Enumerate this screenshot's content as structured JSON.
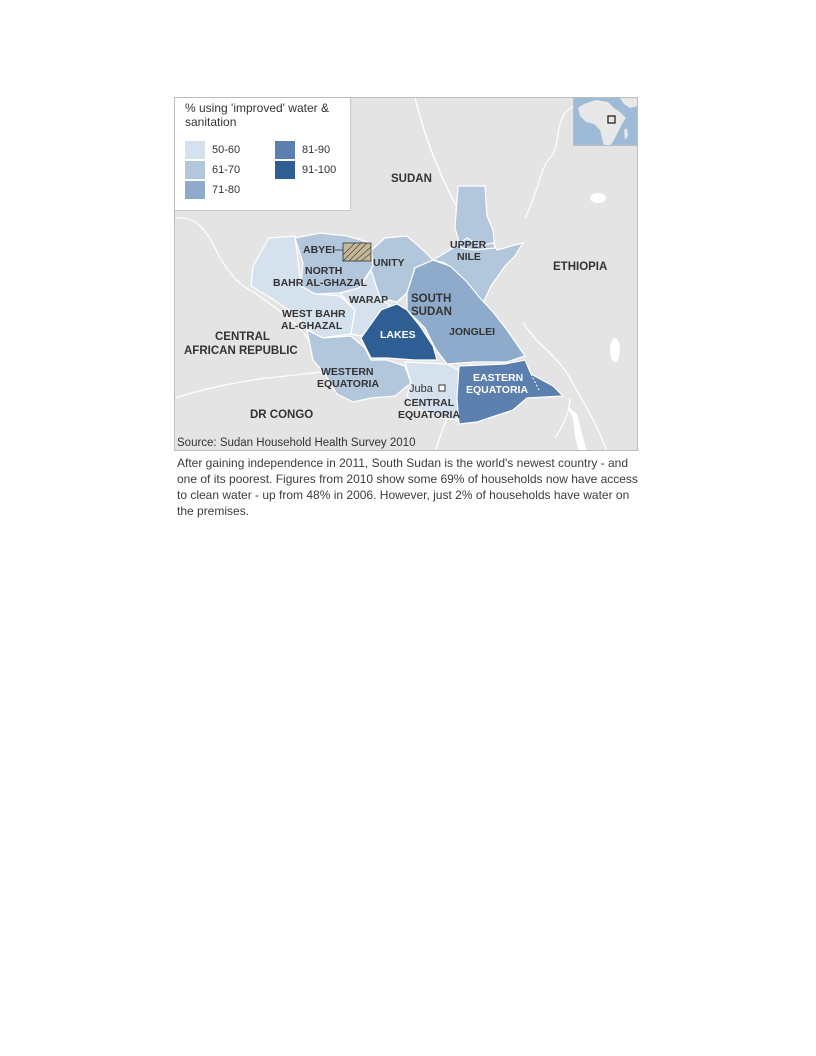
{
  "legend": {
    "title": "% using 'improved' water & sanitation",
    "items": [
      {
        "label": "50-60",
        "color": "#d6e1ee"
      },
      {
        "label": "61-70",
        "color": "#b2c6dc"
      },
      {
        "label": "71-80",
        "color": "#8fabcb"
      },
      {
        "label": "81-90",
        "color": "#5b7fae"
      },
      {
        "label": "91-100",
        "color": "#2f5e94"
      }
    ]
  },
  "countries": {
    "sudan": "SUDAN",
    "ethiopia": "ETHIOPIA",
    "car_line1": "CENTRAL",
    "car_line2": "AFRICAN REPUBLIC",
    "drc": "DR CONGO",
    "south_sudan_line1": "SOUTH",
    "south_sudan_line2": "SUDAN"
  },
  "regions": {
    "abyei": "ABYEI",
    "upper_nile_line1": "UPPER",
    "upper_nile_line2": "NILE",
    "unity": "UNITY",
    "nbg_line1": "NORTH",
    "nbg_line2": "BAHR AL-GHAZAL",
    "warap": "WARAP",
    "wbg_line1": "WEST BAHR",
    "wbg_line2": "AL-GHAZAL",
    "lakes": "LAKES",
    "jonglei": "JONGLEI",
    "we_line1": "WESTERN",
    "we_line2": "EQUATORIA",
    "ee_line1": "EASTERN",
    "ee_line2": "EQUATORIA",
    "ce_line1": "CENTRAL",
    "ce_line2": "EQUATORIA",
    "juba": "Juba"
  },
  "source": "Source: Sudan Household Health Survey 2010",
  "caption": "After gaining independence in 2011, South Sudan is the world's newest country - and one of its poorest. Figures from 2010 show some 69% of households now have access to clean water - up from 48% in 2006. However, just 2% of households have water on the premises."
}
